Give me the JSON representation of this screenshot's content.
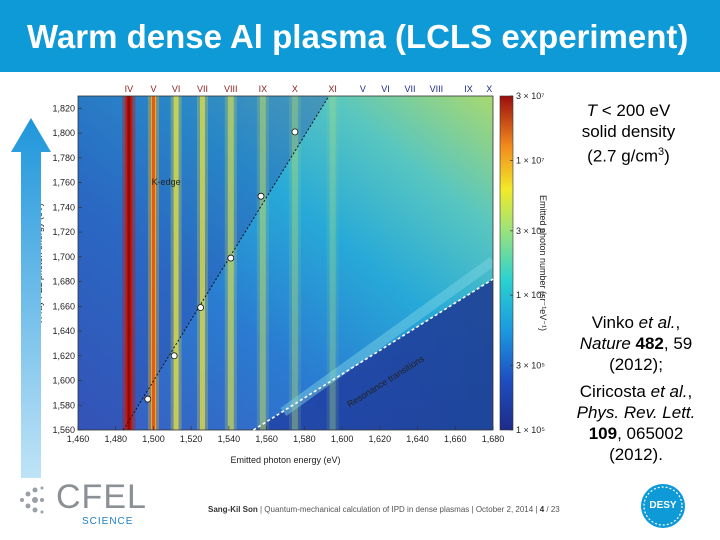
{
  "slide": {
    "title": "Warm dense Al plasma (LCLS experiment)",
    "conditions": {
      "temp_var": "T",
      "temp_rest": " < 200 eV",
      "density_line1": "solid density",
      "density_line2_pre": "(2.7 g/cm",
      "density_sup": "3",
      "density_line2_post": ")"
    },
    "refs": [
      {
        "author": "Vinko ",
        "etal": "et al.",
        "comma": ",",
        "journal": "Nature ",
        "volume": "482",
        "pages": ", 59",
        "year": "(2012);"
      },
      {
        "author": "Ciricosta ",
        "etal": "et al.",
        "comma": ",",
        "journal": "Phys. Rev. Lett.",
        "volume": "109",
        "pages": ", 065002",
        "year": "(2012)."
      }
    ],
    "footer": {
      "author": "Sang-Kil Son",
      "sep1": " | Quantum-mechanical calculation of IPD in dense plasmas | October 2, 2014 | ",
      "page": "4",
      "total": " / 23"
    },
    "logos": {
      "cfel_main": "CFEL",
      "cfel_sub": "SCIENCE",
      "desy": "DESY"
    }
  },
  "chart_data": {
    "type": "heatmap",
    "xlabel": "Emitted photon energy (eV)",
    "ylabel": "X-ray FEL photon energy (eV)",
    "colorbar_label": "Emitted photon number (sr⁻¹eV⁻¹)",
    "x_ticks": [
      1460,
      1480,
      1500,
      1520,
      1540,
      1560,
      1580,
      1600,
      1620,
      1640,
      1660,
      1680
    ],
    "y_ticks": [
      1560,
      1580,
      1600,
      1620,
      1640,
      1660,
      1680,
      1700,
      1720,
      1740,
      1760,
      1780,
      1800,
      1820
    ],
    "xlim": [
      1460,
      1680
    ],
    "ylim": [
      1560,
      1830
    ],
    "colorbar_ticks": [
      "1 × 10⁵",
      "3 × 10⁵",
      "1 × 10⁶",
      "3 × 10⁶",
      "1 × 10⁷",
      "3 × 10⁷"
    ],
    "colorbar_values": [
      100000,
      300000,
      1000000,
      3000000,
      10000000,
      30000000
    ],
    "emission_lines": [
      {
        "label": "IV",
        "x": 1487
      },
      {
        "label": "V",
        "x": 1500
      },
      {
        "label": "VI",
        "x": 1512
      },
      {
        "label": "VII",
        "x": 1526
      },
      {
        "label": "VIII",
        "x": 1541
      },
      {
        "label": "IX",
        "x": 1558
      },
      {
        "label": "X",
        "x": 1575
      },
      {
        "label": "XI",
        "x": 1595
      }
    ],
    "resonance_labels": [
      {
        "label": "V",
        "x": 1611
      },
      {
        "label": "VI",
        "x": 1623
      },
      {
        "label": "VII",
        "x": 1636
      },
      {
        "label": "VIII",
        "x": 1650
      },
      {
        "label": "IX",
        "x": 1667
      },
      {
        "label": "X",
        "x": 1678
      }
    ],
    "k_edge_label": "K-edge",
    "k_edge_line": [
      [
        1484,
        1560
      ],
      [
        1593,
        1830
      ]
    ],
    "k_edge_points": [
      {
        "x": 1497,
        "y": 1585
      },
      {
        "x": 1511,
        "y": 1620
      },
      {
        "x": 1525,
        "y": 1659
      },
      {
        "x": 1541,
        "y": 1699
      },
      {
        "x": 1557,
        "y": 1749
      },
      {
        "x": 1575,
        "y": 1801
      }
    ],
    "resonance_label": "Resonance transitions",
    "resonance_line": [
      [
        1553,
        1560
      ],
      [
        1680,
        1682
      ]
    ]
  }
}
